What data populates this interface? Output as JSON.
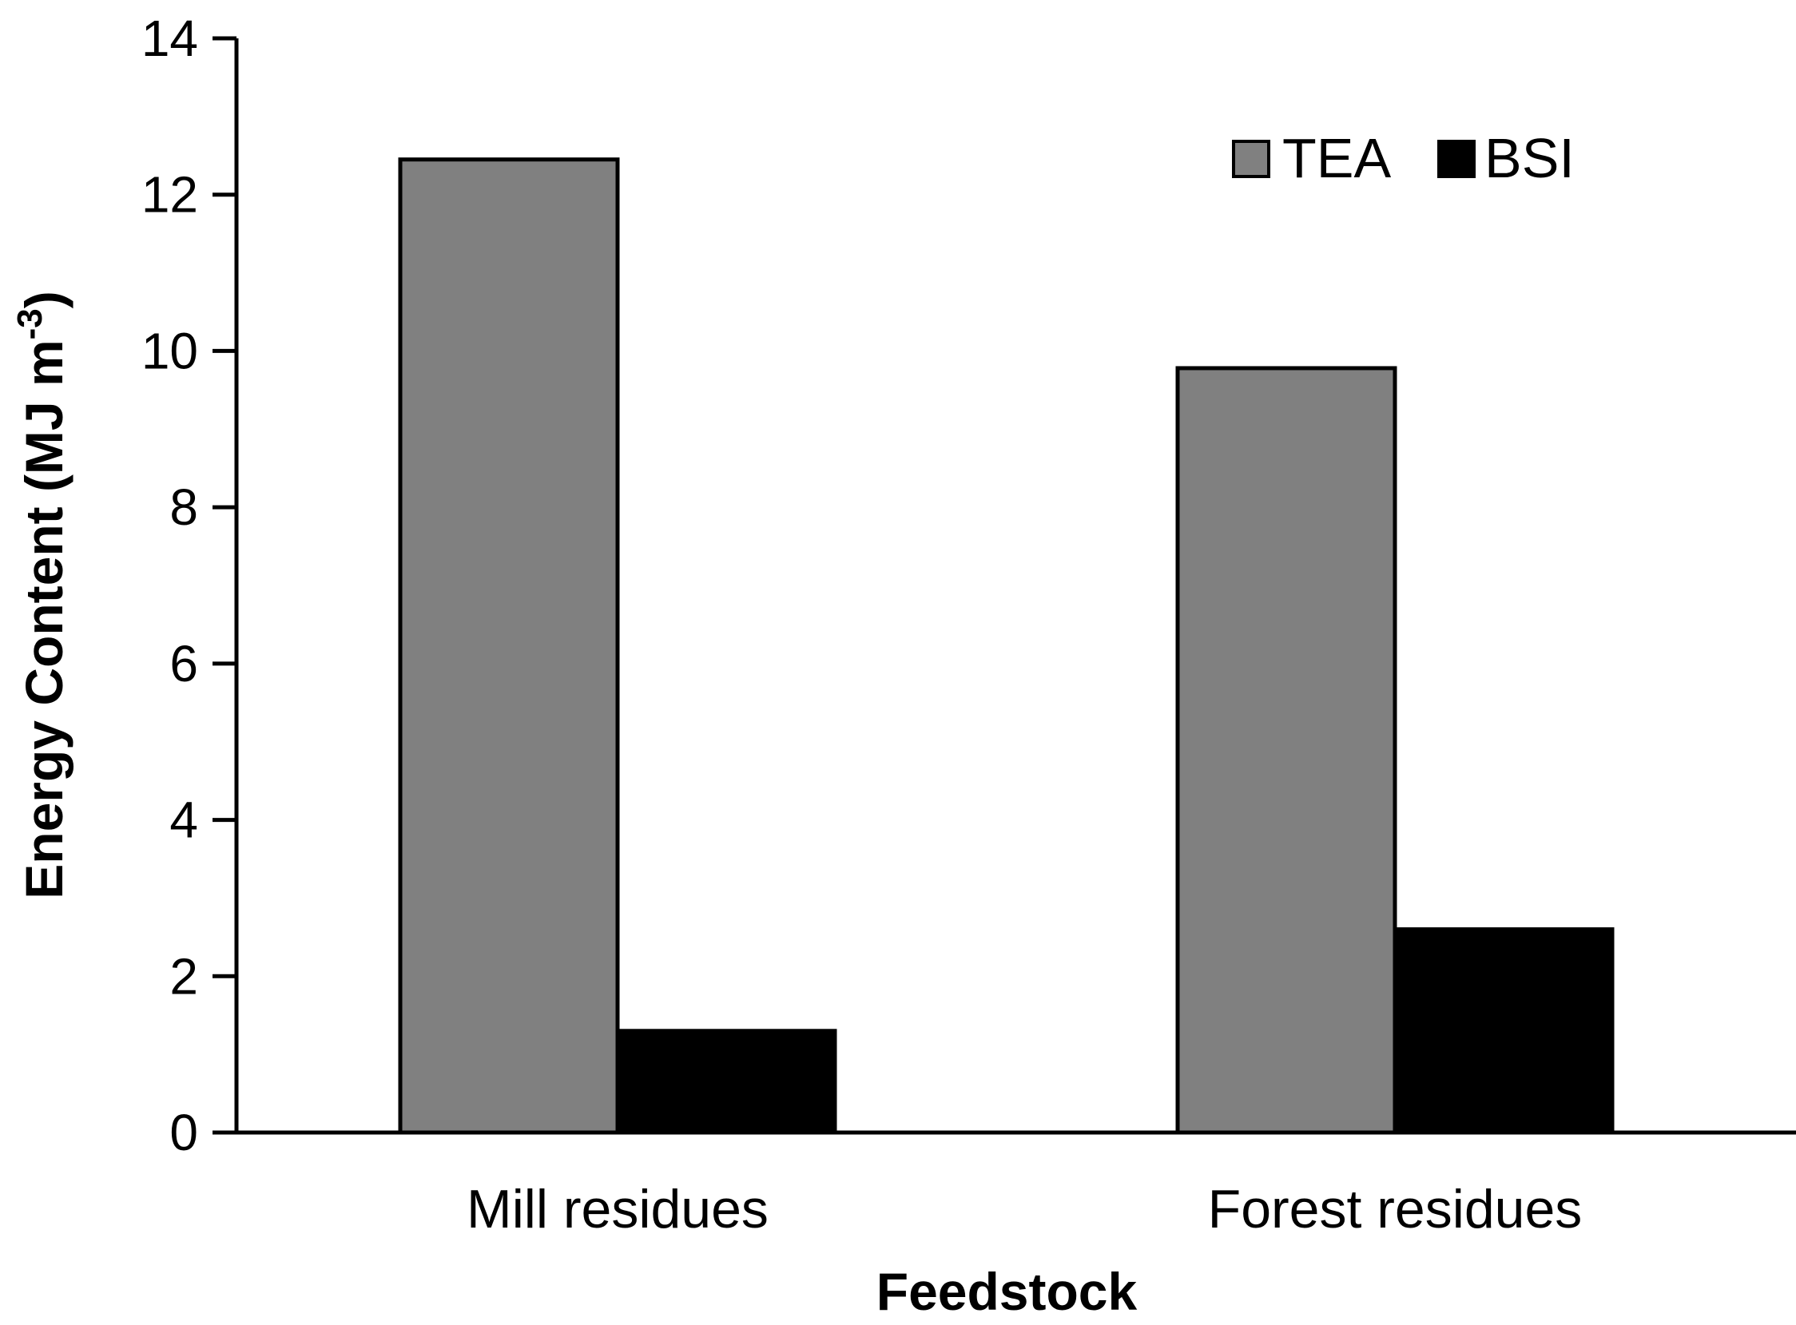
{
  "chart_data": {
    "type": "bar",
    "categories": [
      "Mill residues",
      "Forest residues"
    ],
    "series": [
      {
        "name": "TEA",
        "values": [
          12.45,
          9.78
        ]
      },
      {
        "name": "BSI",
        "values": [
          1.3,
          2.6
        ]
      }
    ],
    "xlabel": "Feedstock",
    "ylabel": "Energy Content (MJ m",
    "ylabel_superscript": "-3",
    "ylabel_close": ")",
    "ylim": [
      0,
      14
    ],
    "yticks": [
      0,
      2,
      4,
      6,
      8,
      10,
      12,
      14
    ],
    "grid": false,
    "legend_position": "top-right",
    "colors": {
      "TEA": "#808080",
      "BSI": "#000000",
      "edge": "#000000"
    }
  }
}
